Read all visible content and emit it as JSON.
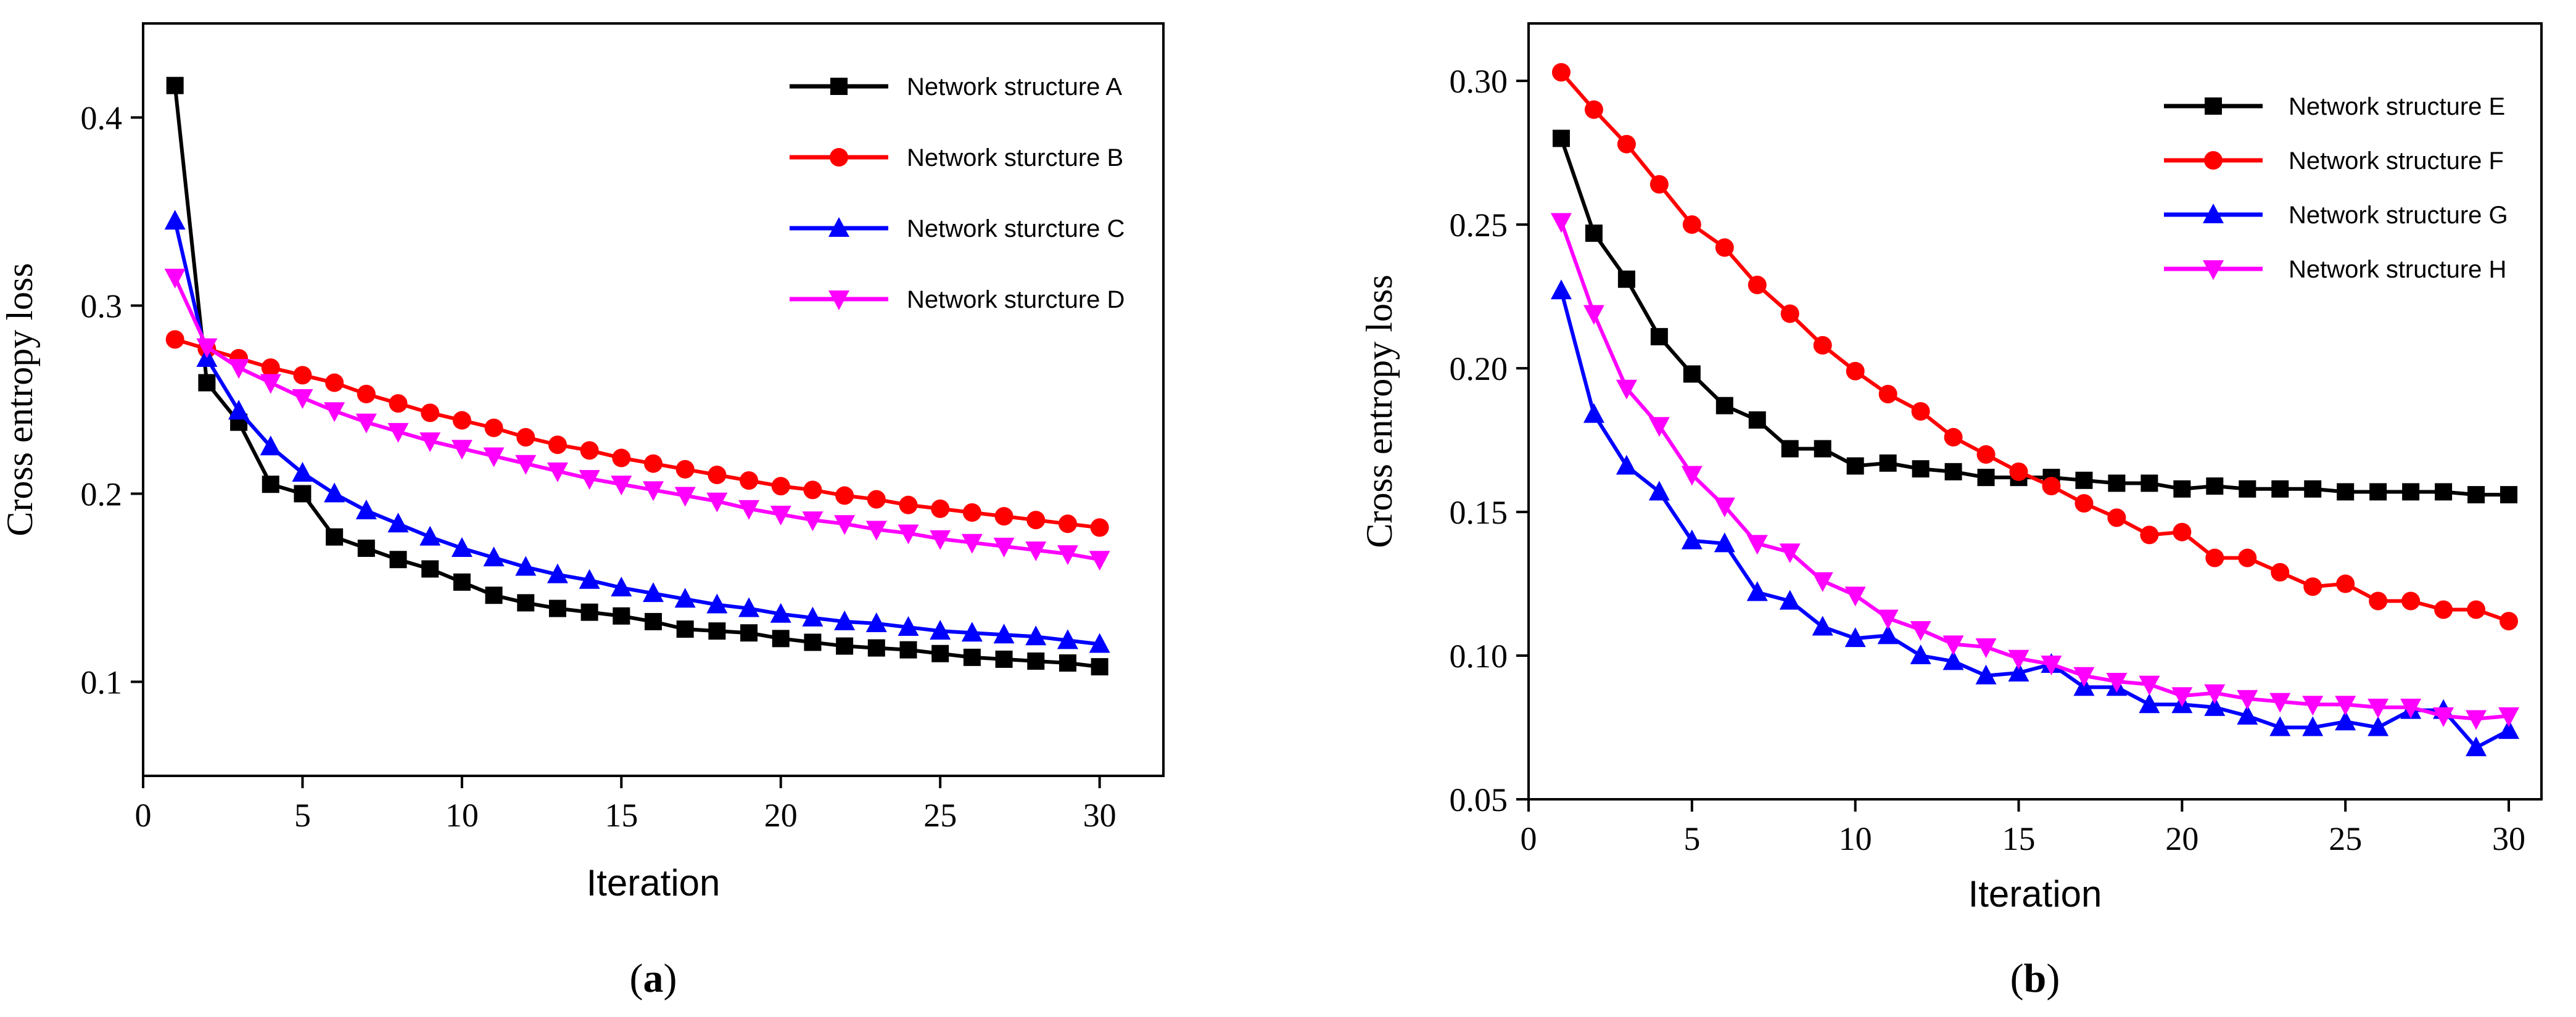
{
  "chart_data": [
    {
      "type": "line",
      "panel_label": "a",
      "xlabel": "Iteration",
      "ylabel": "Cross entropy loss",
      "xlim": [
        0,
        32
      ],
      "ylim": [
        0.05,
        0.45
      ],
      "x_ticks": [
        0,
        5,
        10,
        15,
        20,
        25,
        30
      ],
      "y_ticks": [
        0.1,
        0.2,
        0.3,
        0.4
      ],
      "y_tick_labels": [
        "0.1",
        "0.2",
        "0.3",
        "0.4"
      ],
      "legend_position": "top-right",
      "x": [
        1,
        2,
        3,
        4,
        5,
        6,
        7,
        8,
        9,
        10,
        11,
        12,
        13,
        14,
        15,
        16,
        17,
        18,
        19,
        20,
        21,
        22,
        23,
        24,
        25,
        26,
        27,
        28,
        29,
        30
      ],
      "series": [
        {
          "name": "Network structure A",
          "color": "#000000",
          "marker": "square",
          "values": [
            0.417,
            0.259,
            0.238,
            0.205,
            0.2,
            0.177,
            0.171,
            0.165,
            0.16,
            0.153,
            0.146,
            0.142,
            0.139,
            0.137,
            0.135,
            0.132,
            0.128,
            0.127,
            0.126,
            0.123,
            0.121,
            0.119,
            0.118,
            0.117,
            0.115,
            0.113,
            0.112,
            0.111,
            0.11,
            0.108
          ]
        },
        {
          "name": "Network sturcture B",
          "color": "#ff0000",
          "marker": "circle",
          "values": [
            0.282,
            0.277,
            0.272,
            0.267,
            0.263,
            0.259,
            0.253,
            0.248,
            0.243,
            0.239,
            0.235,
            0.23,
            0.226,
            0.223,
            0.219,
            0.216,
            0.213,
            0.21,
            0.207,
            0.204,
            0.202,
            0.199,
            0.197,
            0.194,
            0.192,
            0.19,
            0.188,
            0.186,
            0.184,
            0.182
          ]
        },
        {
          "name": "Network sturcture C",
          "color": "#0000ff",
          "marker": "triangle-up",
          "values": [
            0.345,
            0.272,
            0.244,
            0.225,
            0.211,
            0.2,
            0.191,
            0.184,
            0.177,
            0.171,
            0.166,
            0.161,
            0.157,
            0.154,
            0.15,
            0.147,
            0.144,
            0.141,
            0.139,
            0.136,
            0.134,
            0.132,
            0.131,
            0.129,
            0.127,
            0.126,
            0.125,
            0.124,
            0.122,
            0.12
          ]
        },
        {
          "name": "Network sturcture D",
          "color": "#ff00ff",
          "marker": "triangle-down",
          "values": [
            0.315,
            0.278,
            0.267,
            0.259,
            0.251,
            0.244,
            0.238,
            0.233,
            0.228,
            0.224,
            0.22,
            0.216,
            0.212,
            0.208,
            0.205,
            0.202,
            0.199,
            0.196,
            0.192,
            0.189,
            0.186,
            0.184,
            0.181,
            0.179,
            0.176,
            0.174,
            0.172,
            0.17,
            0.168,
            0.165
          ]
        }
      ]
    },
    {
      "type": "line",
      "panel_label": "b",
      "xlabel": "Iteration",
      "ylabel": "Cross entropy loss",
      "xlim": [
        0,
        31
      ],
      "ylim": [
        0.05,
        0.32
      ],
      "x_ticks": [
        0,
        5,
        10,
        15,
        20,
        25,
        30
      ],
      "y_ticks": [
        0.05,
        0.1,
        0.15,
        0.2,
        0.25,
        0.3
      ],
      "y_tick_labels": [
        "0.05",
        "0.10",
        "0.15",
        "0.20",
        "0.25",
        "0.30"
      ],
      "legend_position": "top-right",
      "x": [
        1,
        2,
        3,
        4,
        5,
        6,
        7,
        8,
        9,
        10,
        11,
        12,
        13,
        14,
        15,
        16,
        17,
        18,
        19,
        20,
        21,
        22,
        23,
        24,
        25,
        26,
        27,
        28,
        29,
        30
      ],
      "series": [
        {
          "name": "Network structure E",
          "color": "#000000",
          "marker": "square",
          "values": [
            0.28,
            0.247,
            0.231,
            0.211,
            0.198,
            0.187,
            0.182,
            0.172,
            0.172,
            0.166,
            0.167,
            0.165,
            0.164,
            0.162,
            0.162,
            0.162,
            0.161,
            0.16,
            0.16,
            0.158,
            0.159,
            0.158,
            0.158,
            0.158,
            0.157,
            0.157,
            0.157,
            0.157,
            0.156,
            0.156
          ]
        },
        {
          "name": "Network structure F",
          "color": "#ff0000",
          "marker": "circle",
          "values": [
            0.303,
            0.29,
            0.278,
            0.264,
            0.25,
            0.242,
            0.229,
            0.219,
            0.208,
            0.199,
            0.191,
            0.185,
            0.176,
            0.17,
            0.164,
            0.159,
            0.153,
            0.148,
            0.142,
            0.143,
            0.134,
            0.134,
            0.129,
            0.124,
            0.125,
            0.119,
            0.119,
            0.116,
            0.116,
            0.112
          ]
        },
        {
          "name": "Network structure G",
          "color": "#0000ff",
          "marker": "triangle-up",
          "values": [
            0.227,
            0.184,
            0.166,
            0.157,
            0.14,
            0.139,
            0.122,
            0.119,
            0.11,
            0.106,
            0.107,
            0.1,
            0.098,
            0.093,
            0.094,
            0.097,
            0.089,
            0.089,
            0.083,
            0.083,
            0.082,
            0.079,
            0.075,
            0.075,
            0.077,
            0.075,
            0.081,
            0.081,
            0.068,
            0.074
          ]
        },
        {
          "name": "Network structure H",
          "color": "#ff00ff",
          "marker": "triangle-down",
          "values": [
            0.251,
            0.219,
            0.193,
            0.18,
            0.163,
            0.152,
            0.139,
            0.136,
            0.126,
            0.121,
            0.113,
            0.109,
            0.104,
            0.103,
            0.099,
            0.097,
            0.093,
            0.091,
            0.09,
            0.086,
            0.087,
            0.085,
            0.084,
            0.083,
            0.083,
            0.082,
            0.082,
            0.079,
            0.078,
            0.079
          ]
        }
      ]
    }
  ]
}
